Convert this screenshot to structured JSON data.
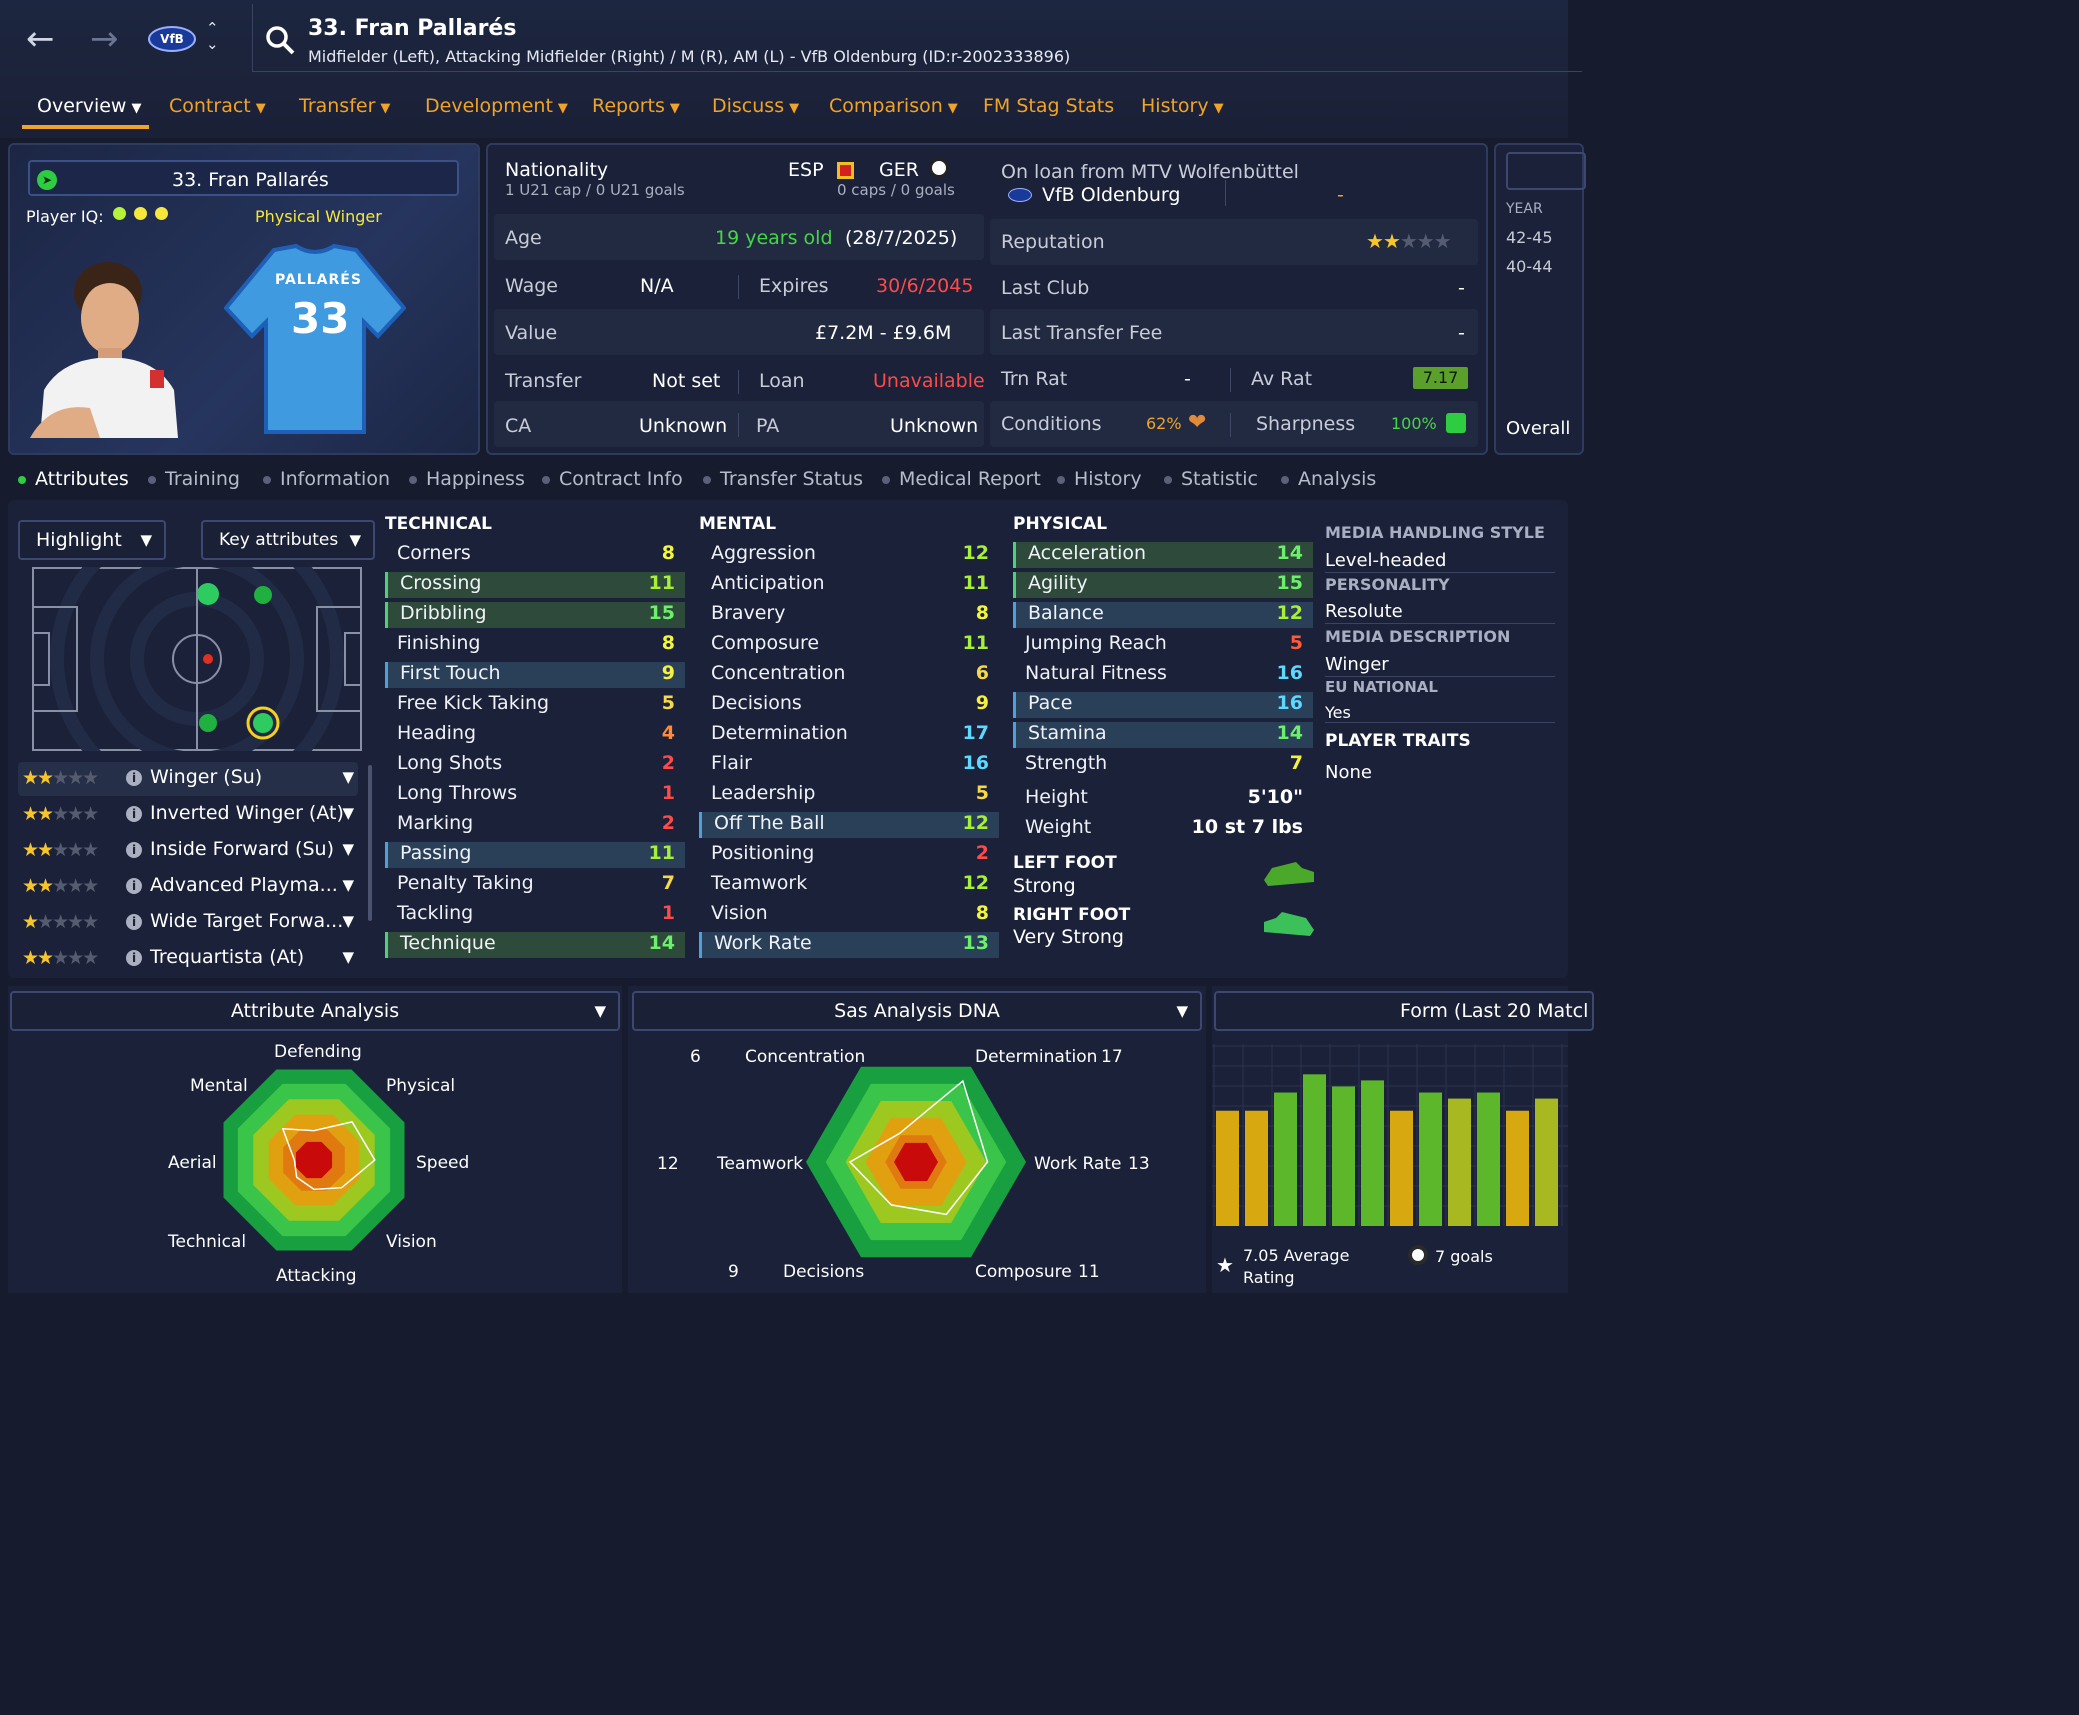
{
  "header": {
    "player_title": "33. Fran Pallarés",
    "subtitle": "Midfielder (Left), Attacking Midfielder (Right) / M (R), AM (L) - VfB Oldenburg (ID:r-2002333896)",
    "club_badge": "VfB"
  },
  "nav": [
    {
      "label": "Overview"
    },
    {
      "label": "Contract"
    },
    {
      "label": "Transfer"
    },
    {
      "label": "Development"
    },
    {
      "label": "Reports"
    },
    {
      "label": "Discuss"
    },
    {
      "label": "Comparison"
    },
    {
      "label": "FM Stag Stats"
    },
    {
      "label": "History"
    }
  ],
  "card": {
    "name": "33. Fran Pallarés",
    "iq_label": "Player IQ:",
    "archetype": "Physical Winger",
    "shirt_name": "PALLARÉS",
    "shirt_number": "33"
  },
  "info": {
    "nationality_label": "Nationality",
    "nat_caps": "1 U21 cap / 0 U21 goals",
    "nat1": "ESP",
    "nat2": "GER",
    "nat2_caps": "0 caps / 0 goals",
    "loan_text": "On loan from MTV Wolfenbüttel",
    "club": "VfB Oldenburg",
    "club_dash": "-",
    "age_label": "Age",
    "age": "19 years old",
    "dob": "(28/7/2025)",
    "reputation_label": "Reputation",
    "reputation_stars": 1.5,
    "wage_label": "Wage",
    "wage": "N/A",
    "expires_label": "Expires",
    "expires": "30/6/2045",
    "last_club_label": "Last Club",
    "last_club": "-",
    "value_label": "Value",
    "value": "£7.2M - £9.6M",
    "fee_label": "Last Transfer Fee",
    "fee": "-",
    "transfer_label": "Transfer",
    "transfer": "Not set",
    "loan_label": "Loan",
    "loan": "Unavailable",
    "trn_label": "Trn Rat",
    "trn": "-",
    "avrat_label": "Av Rat",
    "avrat": "7.17",
    "ca_label": "CA",
    "ca": "Unknown",
    "pa_label": "PA",
    "pa": "Unknown",
    "cond_label": "Conditions",
    "cond": "62%",
    "sharp_label": "Sharpness",
    "sharp": "100%"
  },
  "side": {
    "year_label": "YEAR",
    "years": [
      "42-45",
      "40-44"
    ],
    "overall": "Overall"
  },
  "subtabs": [
    "Attributes",
    "Training",
    "Information",
    "Happiness",
    "Contract Info",
    "Transfer Status",
    "Medical Report",
    "History",
    "Statistic",
    "Analysis"
  ],
  "controls": {
    "highlight": "Highlight",
    "key": "Key attributes"
  },
  "roles": [
    {
      "name": "Winger (Su)",
      "stars": 2
    },
    {
      "name": "Inverted Winger (At)",
      "stars": 2
    },
    {
      "name": "Inside Forward (Su)",
      "stars": 2
    },
    {
      "name": "Advanced Playma...",
      "stars": 1.5
    },
    {
      "name": "Wide Target Forwa...",
      "stars": 1
    },
    {
      "name": "Trequartista (At)",
      "stars": 1.5
    }
  ],
  "technical": {
    "title": "TECHNICAL",
    "items": [
      {
        "n": "Corners",
        "v": "8"
      },
      {
        "n": "Crossing",
        "v": "11"
      },
      {
        "n": "Dribbling",
        "v": "15"
      },
      {
        "n": "Finishing",
        "v": "8"
      },
      {
        "n": "First Touch",
        "v": "9"
      },
      {
        "n": "Free Kick Taking",
        "v": "5"
      },
      {
        "n": "Heading",
        "v": "4"
      },
      {
        "n": "Long Shots",
        "v": "2"
      },
      {
        "n": "Long Throws",
        "v": "1"
      },
      {
        "n": "Marking",
        "v": "2"
      },
      {
        "n": "Passing",
        "v": "11"
      },
      {
        "n": "Penalty Taking",
        "v": "7"
      },
      {
        "n": "Tackling",
        "v": "1"
      },
      {
        "n": "Technique",
        "v": "14"
      }
    ]
  },
  "mental": {
    "title": "MENTAL",
    "items": [
      {
        "n": "Aggression",
        "v": "12"
      },
      {
        "n": "Anticipation",
        "v": "11"
      },
      {
        "n": "Bravery",
        "v": "8"
      },
      {
        "n": "Composure",
        "v": "11"
      },
      {
        "n": "Concentration",
        "v": "6"
      },
      {
        "n": "Decisions",
        "v": "9"
      },
      {
        "n": "Determination",
        "v": "17"
      },
      {
        "n": "Flair",
        "v": "16"
      },
      {
        "n": "Leadership",
        "v": "5"
      },
      {
        "n": "Off The Ball",
        "v": "12"
      },
      {
        "n": "Positioning",
        "v": "2"
      },
      {
        "n": "Teamwork",
        "v": "12"
      },
      {
        "n": "Vision",
        "v": "8"
      },
      {
        "n": "Work Rate",
        "v": "13"
      }
    ]
  },
  "physical": {
    "title": "PHYSICAL",
    "items": [
      {
        "n": "Acceleration",
        "v": "14"
      },
      {
        "n": "Agility",
        "v": "15"
      },
      {
        "n": "Balance",
        "v": "12"
      },
      {
        "n": "Jumping Reach",
        "v": "5"
      },
      {
        "n": "Natural Fitness",
        "v": "16"
      },
      {
        "n": "Pace",
        "v": "16"
      },
      {
        "n": "Stamina",
        "v": "14"
      },
      {
        "n": "Strength",
        "v": "7"
      }
    ],
    "height_label": "Height",
    "height": "5'10\"",
    "weight_label": "Weight",
    "weight": "10 st 7 lbs",
    "left_foot_label": "LEFT FOOT",
    "left_foot": "Strong",
    "right_foot_label": "RIGHT FOOT",
    "right_foot": "Very Strong"
  },
  "media": {
    "style_label": "MEDIA HANDLING STYLE",
    "style": "Level-headed",
    "pers_label": "PERSONALITY",
    "pers": "Resolute",
    "desc_label": "MEDIA DESCRIPTION",
    "desc": "Winger",
    "eu_label": "EU NATIONAL",
    "eu": "Yes",
    "traits_label": "PLAYER TRAITS",
    "traits": "None"
  },
  "attr_analysis": {
    "title": "Attribute Analysis",
    "axes": [
      "Defending",
      "Physical",
      "Speed",
      "Vision",
      "Attacking",
      "Technical",
      "Aerial",
      "Mental"
    ]
  },
  "dna": {
    "title": "Sas Analysis DNA",
    "labels": [
      {
        "name": "Concentration",
        "num": "6"
      },
      {
        "name": "Determination",
        "num": "17"
      },
      {
        "name": "Work Rate",
        "num": "13"
      },
      {
        "name": "Composure",
        "num": "11"
      },
      {
        "name": "Decisions",
        "num": "9"
      },
      {
        "name": "Teamwork",
        "num": "12"
      }
    ]
  },
  "form": {
    "title": "Form (Last 20 Matcl",
    "avg": "7.05 Average Rating",
    "goals": "7 goals"
  },
  "colors": {
    "accent": "#f0a327",
    "panel": "#1a2138",
    "good": "#2ecc40"
  },
  "chart_data": [
    {
      "type": "radar",
      "title": "Attribute Analysis",
      "axes": [
        "Defending",
        "Physical",
        "Speed",
        "Vision",
        "Attacking",
        "Technical",
        "Aerial",
        "Mental"
      ],
      "values": [
        0.3,
        0.55,
        0.62,
        0.4,
        0.3,
        0.25,
        0.2,
        0.45
      ]
    },
    {
      "type": "radar",
      "title": "Sas Analysis DNA",
      "axes": [
        "Concentration",
        "Determination",
        "Work Rate",
        "Composure",
        "Decisions",
        "Teamwork"
      ],
      "values": [
        6,
        17,
        13,
        11,
        9,
        12
      ],
      "ylim": [
        0,
        20
      ]
    },
    {
      "type": "bar",
      "title": "Form (Last 20 Matcl",
      "values": [
        6.9,
        6.9,
        7.2,
        7.5,
        7.3,
        7.4,
        6.9,
        7.2,
        7.1,
        7.2,
        6.9,
        7.1
      ],
      "ylim": [
        5,
        8
      ]
    }
  ]
}
